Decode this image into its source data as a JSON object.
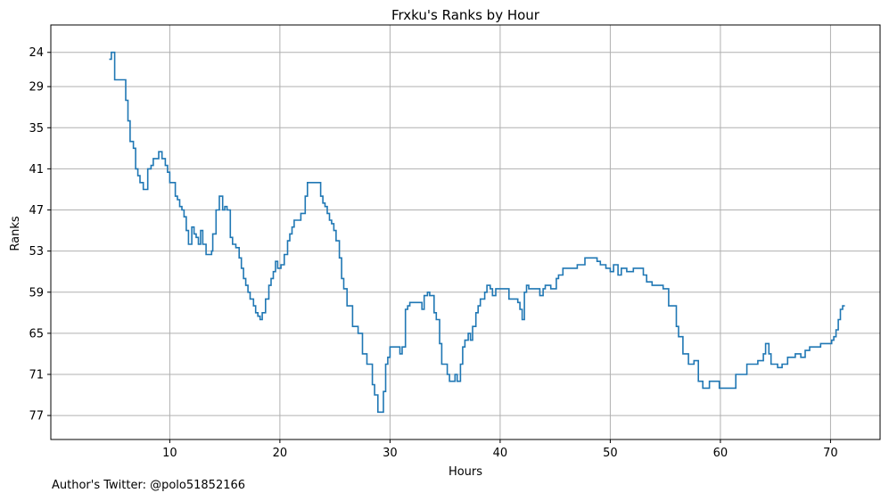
{
  "chart_data": {
    "type": "line",
    "step": true,
    "title": "Frxku's Ranks by Hour",
    "xlabel": "Hours",
    "ylabel": "Ranks",
    "xlim": [
      -0.8,
      74.5
    ],
    "ylim": [
      80.5,
      20
    ],
    "y_inverted": true,
    "xticks": [
      10,
      20,
      30,
      40,
      50,
      60,
      70
    ],
    "yticks": [
      24,
      29,
      35,
      41,
      47,
      53,
      59,
      65,
      71,
      77
    ],
    "grid": true,
    "line_color": "#1f77b4",
    "series": [
      {
        "points": [
          [
            4.5,
            25
          ],
          [
            4.7,
            24
          ],
          [
            5.0,
            28
          ],
          [
            6.0,
            31
          ],
          [
            6.2,
            34
          ],
          [
            6.4,
            37
          ],
          [
            6.7,
            38
          ],
          [
            6.9,
            41
          ],
          [
            7.1,
            42
          ],
          [
            7.3,
            43
          ],
          [
            7.6,
            44
          ],
          [
            8.0,
            41
          ],
          [
            8.3,
            40.5
          ],
          [
            8.5,
            39.5
          ],
          [
            9.0,
            38.5
          ],
          [
            9.3,
            39.5
          ],
          [
            9.6,
            40.5
          ],
          [
            9.8,
            41.5
          ],
          [
            10.0,
            43
          ],
          [
            10.5,
            45
          ],
          [
            10.7,
            45.5
          ],
          [
            10.9,
            46.5
          ],
          [
            11.1,
            47
          ],
          [
            11.3,
            48
          ],
          [
            11.5,
            50
          ],
          [
            11.7,
            52
          ],
          [
            12.0,
            49.5
          ],
          [
            12.2,
            50.5
          ],
          [
            12.4,
            51
          ],
          [
            12.6,
            52
          ],
          [
            12.8,
            50
          ],
          [
            13.0,
            52
          ],
          [
            13.3,
            53.5
          ],
          [
            13.8,
            53
          ],
          [
            13.9,
            50.5
          ],
          [
            14.2,
            47
          ],
          [
            14.5,
            45
          ],
          [
            14.8,
            47
          ],
          [
            15.0,
            46.5
          ],
          [
            15.2,
            47
          ],
          [
            15.5,
            51
          ],
          [
            15.7,
            52
          ],
          [
            16.0,
            52.5
          ],
          [
            16.3,
            54
          ],
          [
            16.5,
            55.5
          ],
          [
            16.7,
            57
          ],
          [
            16.9,
            58
          ],
          [
            17.1,
            59
          ],
          [
            17.3,
            60
          ],
          [
            17.6,
            61
          ],
          [
            17.8,
            62
          ],
          [
            18.0,
            62.5
          ],
          [
            18.2,
            63
          ],
          [
            18.4,
            62
          ],
          [
            18.7,
            60
          ],
          [
            19.0,
            58
          ],
          [
            19.2,
            57
          ],
          [
            19.4,
            56
          ],
          [
            19.6,
            54.5
          ],
          [
            19.8,
            55.5
          ],
          [
            20.1,
            55
          ],
          [
            20.4,
            53.5
          ],
          [
            20.7,
            51.5
          ],
          [
            20.9,
            50.5
          ],
          [
            21.1,
            49.5
          ],
          [
            21.3,
            48.5
          ],
          [
            21.9,
            47.5
          ],
          [
            22.3,
            45
          ],
          [
            22.5,
            43
          ],
          [
            23.7,
            45
          ],
          [
            23.9,
            46
          ],
          [
            24.1,
            46.5
          ],
          [
            24.3,
            47.5
          ],
          [
            24.5,
            48.5
          ],
          [
            24.7,
            49
          ],
          [
            24.9,
            50
          ],
          [
            25.1,
            51.5
          ],
          [
            25.4,
            54
          ],
          [
            25.6,
            57
          ],
          [
            25.8,
            58.5
          ],
          [
            26.1,
            61
          ],
          [
            26.6,
            64
          ],
          [
            27.1,
            65
          ],
          [
            27.5,
            68
          ],
          [
            27.9,
            69.5
          ],
          [
            28.4,
            72.5
          ],
          [
            28.6,
            74
          ],
          [
            28.9,
            76.5
          ],
          [
            29.4,
            73.5
          ],
          [
            29.6,
            69.5
          ],
          [
            29.8,
            68.5
          ],
          [
            30.0,
            67
          ],
          [
            30.9,
            68
          ],
          [
            31.1,
            67
          ],
          [
            31.4,
            61.5
          ],
          [
            31.6,
            61
          ],
          [
            31.8,
            60.5
          ],
          [
            32.9,
            61.5
          ],
          [
            33.1,
            59.5
          ],
          [
            33.4,
            59
          ],
          [
            33.6,
            59.5
          ],
          [
            34.0,
            62
          ],
          [
            34.2,
            63
          ],
          [
            34.5,
            66.5
          ],
          [
            34.7,
            69.5
          ],
          [
            35.2,
            71
          ],
          [
            35.4,
            72
          ],
          [
            35.9,
            71
          ],
          [
            36.1,
            72
          ],
          [
            36.4,
            69.5
          ],
          [
            36.6,
            67
          ],
          [
            36.8,
            66
          ],
          [
            37.1,
            65
          ],
          [
            37.3,
            66
          ],
          [
            37.5,
            64
          ],
          [
            37.8,
            62
          ],
          [
            38.0,
            61
          ],
          [
            38.2,
            60
          ],
          [
            38.6,
            59
          ],
          [
            38.8,
            58
          ],
          [
            39.1,
            58.5
          ],
          [
            39.3,
            59.5
          ],
          [
            39.6,
            58.5
          ],
          [
            40.8,
            60
          ],
          [
            41.6,
            60.5
          ],
          [
            41.8,
            61.5
          ],
          [
            42.0,
            63
          ],
          [
            42.2,
            59
          ],
          [
            42.4,
            58
          ],
          [
            42.6,
            58.5
          ],
          [
            43.6,
            59.5
          ],
          [
            43.9,
            58.5
          ],
          [
            44.1,
            58
          ],
          [
            44.6,
            58.5
          ],
          [
            45.1,
            57
          ],
          [
            45.3,
            56.5
          ],
          [
            45.7,
            55.5
          ],
          [
            47.0,
            55
          ],
          [
            47.7,
            54
          ],
          [
            48.8,
            54.5
          ],
          [
            49.1,
            55
          ],
          [
            49.6,
            55.5
          ],
          [
            50.0,
            56
          ],
          [
            50.3,
            55
          ],
          [
            50.7,
            56.5
          ],
          [
            51.0,
            55.5
          ],
          [
            51.5,
            56
          ],
          [
            52.1,
            55.5
          ],
          [
            53.0,
            56.5
          ],
          [
            53.3,
            57.5
          ],
          [
            53.8,
            58
          ],
          [
            54.8,
            58.5
          ],
          [
            55.3,
            61
          ],
          [
            56.0,
            64
          ],
          [
            56.2,
            65.5
          ],
          [
            56.6,
            68
          ],
          [
            57.1,
            69.5
          ],
          [
            57.6,
            69
          ],
          [
            58.0,
            72
          ],
          [
            58.4,
            73
          ],
          [
            59.0,
            72
          ],
          [
            59.9,
            73
          ],
          [
            61.4,
            71
          ],
          [
            62.4,
            69.5
          ],
          [
            63.4,
            69
          ],
          [
            63.9,
            68
          ],
          [
            64.1,
            66.5
          ],
          [
            64.4,
            68
          ],
          [
            64.6,
            69.5
          ],
          [
            65.2,
            70
          ],
          [
            65.6,
            69.5
          ],
          [
            66.1,
            68.5
          ],
          [
            66.8,
            68
          ],
          [
            67.3,
            68.5
          ],
          [
            67.7,
            67.5
          ],
          [
            68.1,
            67
          ],
          [
            69.1,
            66.5
          ],
          [
            70.1,
            66
          ],
          [
            70.3,
            65.5
          ],
          [
            70.5,
            64.5
          ],
          [
            70.7,
            63
          ],
          [
            70.9,
            61.5
          ],
          [
            71.1,
            61
          ]
        ],
        "x_end": 71.3
      }
    ]
  },
  "footer": {
    "author_text": "Author's Twitter: @polo51852166"
  }
}
